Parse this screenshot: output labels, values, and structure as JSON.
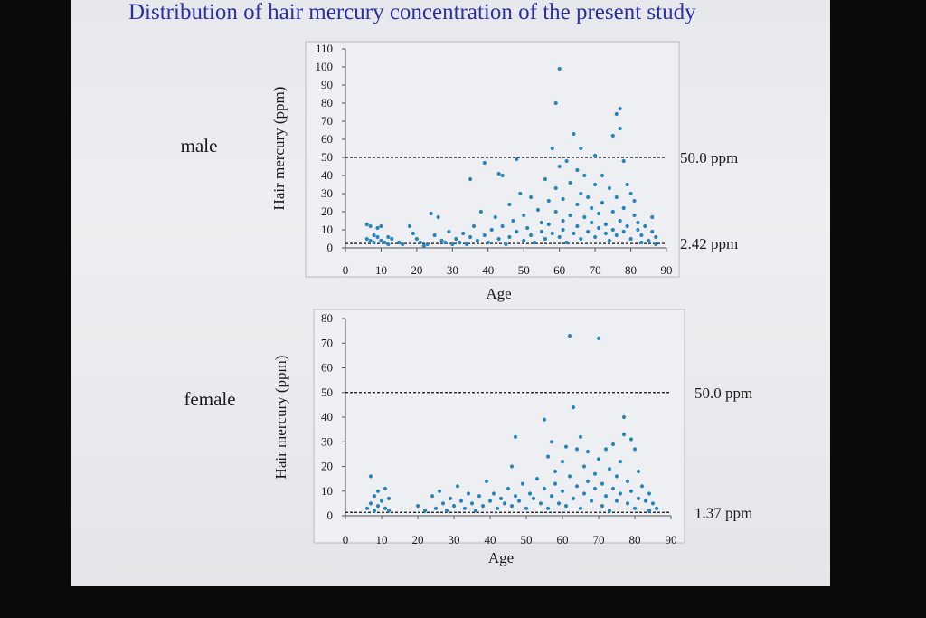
{
  "slide": {
    "title": "Distribution of hair mercury concentration of the present study"
  },
  "colors": {
    "title": "#2b2fa6",
    "point": "#2a86b8",
    "background": "#e8eaed"
  },
  "chart_data": [
    {
      "type": "scatter",
      "group_label": "male",
      "xlabel": "Age",
      "ylabel": "Hair mercury (ppm)",
      "xlim": [
        0,
        90
      ],
      "ylim": [
        0,
        110
      ],
      "x_ticks": [
        "0",
        "10",
        "20",
        "30",
        "40",
        "50",
        "60",
        "70",
        "80",
        "90"
      ],
      "y_ticks": [
        "0",
        "10",
        "20",
        "30",
        "40",
        "50",
        "60",
        "70",
        "80",
        "90",
        "100",
        "110"
      ],
      "reference_lines": [
        {
          "y": 50.0,
          "label": "50.0 ppm"
        },
        {
          "y": 2.42,
          "label": "2.42 ppm"
        }
      ],
      "points": [
        [
          6,
          13
        ],
        [
          7,
          12
        ],
        [
          6,
          5
        ],
        [
          7,
          4
        ],
        [
          8,
          7
        ],
        [
          8,
          3
        ],
        [
          9,
          11
        ],
        [
          9,
          6
        ],
        [
          10,
          4
        ],
        [
          10,
          12
        ],
        [
          11,
          3
        ],
        [
          12,
          6
        ],
        [
          12,
          2
        ],
        [
          13,
          5
        ],
        [
          15,
          3
        ],
        [
          16,
          2
        ],
        [
          18,
          12
        ],
        [
          19,
          8
        ],
        [
          20,
          5
        ],
        [
          21,
          3
        ],
        [
          22,
          1
        ],
        [
          23,
          2
        ],
        [
          24,
          19
        ],
        [
          25,
          7
        ],
        [
          26,
          17
        ],
        [
          27,
          4
        ],
        [
          28,
          3
        ],
        [
          29,
          9
        ],
        [
          30,
          2
        ],
        [
          31,
          5
        ],
        [
          32,
          3
        ],
        [
          33,
          8
        ],
        [
          34,
          2
        ],
        [
          35,
          6
        ],
        [
          35,
          38
        ],
        [
          36,
          12
        ],
        [
          37,
          4
        ],
        [
          38,
          20
        ],
        [
          39,
          7
        ],
        [
          39,
          47
        ],
        [
          40,
          3
        ],
        [
          41,
          10
        ],
        [
          42,
          17
        ],
        [
          43,
          5
        ],
        [
          43,
          41
        ],
        [
          44,
          40
        ],
        [
          44,
          12
        ],
        [
          45,
          2
        ],
        [
          46,
          6
        ],
        [
          46,
          24
        ],
        [
          47,
          15
        ],
        [
          48,
          9
        ],
        [
          48,
          49
        ],
        [
          49,
          30
        ],
        [
          50,
          4
        ],
        [
          50,
          18
        ],
        [
          51,
          11
        ],
        [
          52,
          7
        ],
        [
          52,
          28
        ],
        [
          53,
          3
        ],
        [
          54,
          21
        ],
        [
          55,
          9
        ],
        [
          55,
          14
        ],
        [
          56,
          38
        ],
        [
          56,
          5
        ],
        [
          57,
          26
        ],
        [
          57,
          13
        ],
        [
          58,
          55
        ],
        [
          58,
          8
        ],
        [
          59,
          80
        ],
        [
          59,
          20
        ],
        [
          59,
          33
        ],
        [
          60,
          99
        ],
        [
          60,
          45
        ],
        [
          60,
          6
        ],
        [
          61,
          15
        ],
        [
          61,
          27
        ],
        [
          61,
          10
        ],
        [
          62,
          48
        ],
        [
          62,
          3
        ],
        [
          63,
          36
        ],
        [
          63,
          18
        ],
        [
          64,
          63
        ],
        [
          64,
          8
        ],
        [
          65,
          43
        ],
        [
          65,
          24
        ],
        [
          65,
          12
        ],
        [
          66,
          55
        ],
        [
          66,
          30
        ],
        [
          66,
          5
        ],
        [
          67,
          40
        ],
        [
          67,
          17
        ],
        [
          68,
          9
        ],
        [
          68,
          28
        ],
        [
          69,
          22
        ],
        [
          69,
          14
        ],
        [
          70,
          51
        ],
        [
          70,
          35
        ],
        [
          70,
          6
        ],
        [
          71,
          19
        ],
        [
          71,
          11
        ],
        [
          72,
          40
        ],
        [
          72,
          25
        ],
        [
          73,
          8
        ],
        [
          73,
          13
        ],
        [
          74,
          33
        ],
        [
          74,
          4
        ],
        [
          75,
          62
        ],
        [
          75,
          20
        ],
        [
          75,
          10
        ],
        [
          76,
          74
        ],
        [
          76,
          28
        ],
        [
          76,
          7
        ],
        [
          77,
          77
        ],
        [
          77,
          66
        ],
        [
          77,
          15
        ],
        [
          78,
          48
        ],
        [
          78,
          9
        ],
        [
          78,
          22
        ],
        [
          79,
          35
        ],
        [
          79,
          12
        ],
        [
          80,
          30
        ],
        [
          80,
          5
        ],
        [
          81,
          18
        ],
        [
          81,
          26
        ],
        [
          82,
          10
        ],
        [
          82,
          14
        ],
        [
          83,
          7
        ],
        [
          83,
          3
        ],
        [
          84,
          12
        ],
        [
          85,
          4
        ],
        [
          86,
          17
        ],
        [
          86,
          9
        ],
        [
          87,
          6
        ],
        [
          87,
          2
        ]
      ]
    },
    {
      "type": "scatter",
      "group_label": "female",
      "xlabel": "Age",
      "ylabel": "Hair mercury (ppm)",
      "xlim": [
        0,
        90
      ],
      "ylim": [
        0,
        80
      ],
      "x_ticks": [
        "0",
        "10",
        "20",
        "30",
        "40",
        "50",
        "60",
        "70",
        "80",
        "90"
      ],
      "y_ticks": [
        "0",
        "10",
        "20",
        "30",
        "40",
        "50",
        "60",
        "70",
        "80"
      ],
      "reference_lines": [
        {
          "y": 50.0,
          "label": "50.0 ppm"
        },
        {
          "y": 1.37,
          "label": "1.37 ppm"
        }
      ],
      "points": [
        [
          6,
          3
        ],
        [
          7,
          16
        ],
        [
          7,
          5
        ],
        [
          8,
          2
        ],
        [
          8,
          8
        ],
        [
          9,
          4
        ],
        [
          9,
          10
        ],
        [
          10,
          6
        ],
        [
          11,
          3
        ],
        [
          11,
          11
        ],
        [
          12,
          7
        ],
        [
          12,
          2
        ],
        [
          20,
          4
        ],
        [
          22,
          2
        ],
        [
          24,
          8
        ],
        [
          25,
          3
        ],
        [
          26,
          10
        ],
        [
          27,
          5
        ],
        [
          28,
          2
        ],
        [
          29,
          7
        ],
        [
          30,
          4
        ],
        [
          31,
          12
        ],
        [
          32,
          6
        ],
        [
          33,
          3
        ],
        [
          34,
          9
        ],
        [
          35,
          5
        ],
        [
          36,
          2
        ],
        [
          37,
          8
        ],
        [
          38,
          4
        ],
        [
          39,
          14
        ],
        [
          40,
          6
        ],
        [
          41,
          9
        ],
        [
          42,
          3
        ],
        [
          43,
          7
        ],
        [
          44,
          5
        ],
        [
          45,
          11
        ],
        [
          46,
          20
        ],
        [
          46,
          4
        ],
        [
          47,
          32
        ],
        [
          47,
          8
        ],
        [
          48,
          6
        ],
        [
          49,
          13
        ],
        [
          50,
          3
        ],
        [
          51,
          9
        ],
        [
          52,
          7
        ],
        [
          53,
          15
        ],
        [
          54,
          5
        ],
        [
          55,
          39
        ],
        [
          55,
          11
        ],
        [
          56,
          24
        ],
        [
          56,
          3
        ],
        [
          57,
          30
        ],
        [
          57,
          8
        ],
        [
          58,
          13
        ],
        [
          58,
          18
        ],
        [
          59,
          5
        ],
        [
          60,
          22
        ],
        [
          60,
          10
        ],
        [
          61,
          28
        ],
        [
          61,
          4
        ],
        [
          62,
          73
        ],
        [
          62,
          16
        ],
        [
          63,
          44
        ],
        [
          63,
          7
        ],
        [
          64,
          27
        ],
        [
          64,
          12
        ],
        [
          65,
          32
        ],
        [
          65,
          3
        ],
        [
          66,
          20
        ],
        [
          66,
          9
        ],
        [
          67,
          14
        ],
        [
          67,
          26
        ],
        [
          68,
          6
        ],
        [
          69,
          11
        ],
        [
          69,
          17
        ],
        [
          70,
          72
        ],
        [
          70,
          23
        ],
        [
          71,
          4
        ],
        [
          71,
          13
        ],
        [
          72,
          27
        ],
        [
          72,
          8
        ],
        [
          73,
          19
        ],
        [
          73,
          2
        ],
        [
          74,
          29
        ],
        [
          74,
          11
        ],
        [
          75,
          16
        ],
        [
          75,
          6
        ],
        [
          76,
          22
        ],
        [
          76,
          9
        ],
        [
          77,
          40
        ],
        [
          77,
          33
        ],
        [
          78,
          14
        ],
        [
          78,
          5
        ],
        [
          79,
          31
        ],
        [
          79,
          10
        ],
        [
          80,
          27
        ],
        [
          80,
          3
        ],
        [
          81,
          18
        ],
        [
          81,
          7
        ],
        [
          82,
          12
        ],
        [
          83,
          6
        ],
        [
          84,
          9
        ],
        [
          84,
          2
        ],
        [
          85,
          5
        ],
        [
          86,
          3
        ]
      ]
    }
  ]
}
